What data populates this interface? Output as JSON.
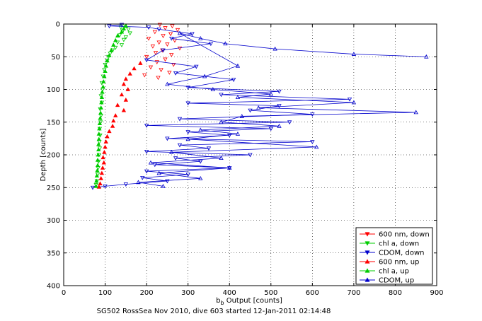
{
  "chart_data": {
    "type": "scatter",
    "title": "",
    "xlabel": "b",
    "xlabel_sub": "b",
    "xlabel_rest": " Output [counts]",
    "ylabel": "Depth [counts]",
    "caption": "SG502 RossSea Nov 2010, dive 603 started 12-Jan-2011 02:14:48",
    "xlim": [
      0,
      900
    ],
    "ylim": [
      0,
      400
    ],
    "y_reversed": true,
    "grid": true,
    "legend_position": "bottom-right",
    "xticks": [
      "0",
      "100",
      "200",
      "300",
      "400",
      "500",
      "600",
      "700",
      "800",
      "900"
    ],
    "yticks": [
      "0",
      "50",
      "100",
      "150",
      "200",
      "250",
      "300",
      "350",
      "400"
    ],
    "series": [
      {
        "name": "600 nm, down",
        "color": "#ff0000",
        "marker": "triangle-down",
        "line": false,
        "points": [
          [
            232,
            1
          ],
          [
            262,
            3
          ],
          [
            245,
            6
          ],
          [
            275,
            9
          ],
          [
            220,
            12
          ],
          [
            258,
            15
          ],
          [
            240,
            18
          ],
          [
            205,
            22
          ],
          [
            268,
            25
          ],
          [
            230,
            28
          ],
          [
            250,
            31
          ],
          [
            215,
            34
          ],
          [
            280,
            37
          ],
          [
            238,
            40
          ],
          [
            222,
            44
          ],
          [
            260,
            47
          ],
          [
            200,
            50
          ],
          [
            245,
            54
          ],
          [
            225,
            58
          ],
          [
            265,
            62
          ],
          [
            210,
            66
          ],
          [
            235,
            70
          ],
          [
            255,
            74
          ],
          [
            195,
            78
          ],
          [
            228,
            82
          ]
        ]
      },
      {
        "name": "chl a, down",
        "color": "#00cc00",
        "marker": "triangle-down",
        "line": false,
        "points": [
          [
            148,
            2
          ],
          [
            138,
            5
          ],
          [
            156,
            8
          ],
          [
            142,
            11
          ],
          [
            160,
            14
          ],
          [
            135,
            17
          ],
          [
            150,
            20
          ],
          [
            145,
            24
          ],
          [
            130,
            28
          ],
          [
            140,
            32
          ],
          [
            125,
            36
          ],
          [
            118,
            40
          ],
          [
            112,
            45
          ],
          [
            108,
            50
          ],
          [
            105,
            56
          ],
          [
            100,
            62
          ],
          [
            98,
            70
          ],
          [
            95,
            80
          ],
          [
            92,
            90
          ],
          [
            94,
            100
          ],
          [
            90,
            110
          ],
          [
            92,
            120
          ],
          [
            88,
            130
          ],
          [
            90,
            140
          ],
          [
            89,
            150
          ],
          [
            87,
            160
          ],
          [
            88,
            170
          ],
          [
            86,
            180
          ],
          [
            87,
            190
          ],
          [
            85,
            200
          ],
          [
            84,
            210
          ],
          [
            83,
            220
          ],
          [
            82,
            230
          ],
          [
            80,
            240
          ],
          [
            78,
            246
          ]
        ]
      },
      {
        "name": "CDOM, down",
        "color": "#0000cc",
        "marker": "triangle-down",
        "line": true,
        "points": [
          [
            140,
            1
          ],
          [
            110,
            3
          ],
          [
            205,
            5
          ],
          [
            230,
            8
          ],
          [
            310,
            15
          ],
          [
            260,
            22
          ],
          [
            355,
            30
          ],
          [
            240,
            40
          ],
          [
            200,
            55
          ],
          [
            320,
            65
          ],
          [
            270,
            75
          ],
          [
            410,
            85
          ],
          [
            300,
            97
          ],
          [
            520,
            103
          ],
          [
            380,
            108
          ],
          [
            690,
            115
          ],
          [
            300,
            121
          ],
          [
            520,
            125
          ],
          [
            450,
            132
          ],
          [
            600,
            138
          ],
          [
            280,
            145
          ],
          [
            545,
            150
          ],
          [
            200,
            155
          ],
          [
            500,
            160
          ],
          [
            300,
            165
          ],
          [
            400,
            170
          ],
          [
            250,
            175
          ],
          [
            600,
            180
          ],
          [
            280,
            185
          ],
          [
            350,
            190
          ],
          [
            200,
            195
          ],
          [
            450,
            200
          ],
          [
            270,
            205
          ],
          [
            330,
            210
          ],
          [
            220,
            215
          ],
          [
            400,
            220
          ],
          [
            200,
            225
          ],
          [
            300,
            230
          ],
          [
            190,
            235
          ],
          [
            250,
            240
          ],
          [
            150,
            245
          ],
          [
            100,
            248
          ],
          [
            70,
            250
          ]
        ]
      },
      {
        "name": "600 nm, up",
        "color": "#ff0000",
        "marker": "triangle-up",
        "line": false,
        "points": [
          [
            185,
            60
          ],
          [
            170,
            68
          ],
          [
            160,
            76
          ],
          [
            150,
            84
          ],
          [
            145,
            92
          ],
          [
            155,
            100
          ],
          [
            140,
            108
          ],
          [
            150,
            116
          ],
          [
            130,
            124
          ],
          [
            145,
            132
          ],
          [
            125,
            140
          ],
          [
            120,
            148
          ],
          [
            118,
            156
          ],
          [
            110,
            164
          ],
          [
            105,
            172
          ],
          [
            102,
            180
          ],
          [
            100,
            188
          ],
          [
            98,
            196
          ],
          [
            95,
            204
          ],
          [
            97,
            212
          ],
          [
            94,
            220
          ],
          [
            92,
            228
          ],
          [
            90,
            236
          ],
          [
            88,
            244
          ],
          [
            85,
            249
          ]
        ]
      },
      {
        "name": "chl a, up",
        "color": "#00cc00",
        "marker": "triangle-up",
        "line": false,
        "points": [
          [
            150,
            3
          ],
          [
            145,
            7
          ],
          [
            140,
            12
          ],
          [
            130,
            18
          ],
          [
            125,
            25
          ],
          [
            120,
            32
          ],
          [
            115,
            40
          ],
          [
            110,
            48
          ],
          [
            105,
            56
          ],
          [
            102,
            64
          ],
          [
            100,
            72
          ],
          [
            98,
            80
          ],
          [
            96,
            88
          ],
          [
            95,
            96
          ],
          [
            93,
            104
          ],
          [
            92,
            112
          ],
          [
            91,
            120
          ],
          [
            90,
            128
          ],
          [
            89,
            136
          ],
          [
            88,
            144
          ],
          [
            87,
            152
          ],
          [
            86,
            160
          ],
          [
            85,
            168
          ],
          [
            85,
            176
          ],
          [
            84,
            184
          ],
          [
            84,
            192
          ],
          [
            83,
            200
          ],
          [
            82,
            208
          ],
          [
            82,
            216
          ],
          [
            81,
            224
          ],
          [
            80,
            232
          ],
          [
            79,
            240
          ],
          [
            78,
            248
          ]
        ]
      },
      {
        "name": "CDOM, up",
        "color": "#0000cc",
        "marker": "triangle-up",
        "line": true,
        "points": [
          [
            875,
            50
          ],
          [
            700,
            46
          ],
          [
            510,
            38
          ],
          [
            390,
            30
          ],
          [
            330,
            22
          ],
          [
            280,
            14
          ],
          [
            420,
            64
          ],
          [
            340,
            80
          ],
          [
            250,
            92
          ],
          [
            360,
            100
          ],
          [
            500,
            107
          ],
          [
            420,
            112
          ],
          [
            700,
            120
          ],
          [
            470,
            128
          ],
          [
            850,
            135
          ],
          [
            430,
            141
          ],
          [
            380,
            150
          ],
          [
            520,
            156
          ],
          [
            330,
            162
          ],
          [
            420,
            168
          ],
          [
            300,
            176
          ],
          [
            610,
            188
          ],
          [
            260,
            196
          ],
          [
            380,
            205
          ],
          [
            210,
            212
          ],
          [
            400,
            220
          ],
          [
            230,
            228
          ],
          [
            330,
            236
          ],
          [
            180,
            242
          ],
          [
            240,
            248
          ]
        ]
      }
    ]
  }
}
